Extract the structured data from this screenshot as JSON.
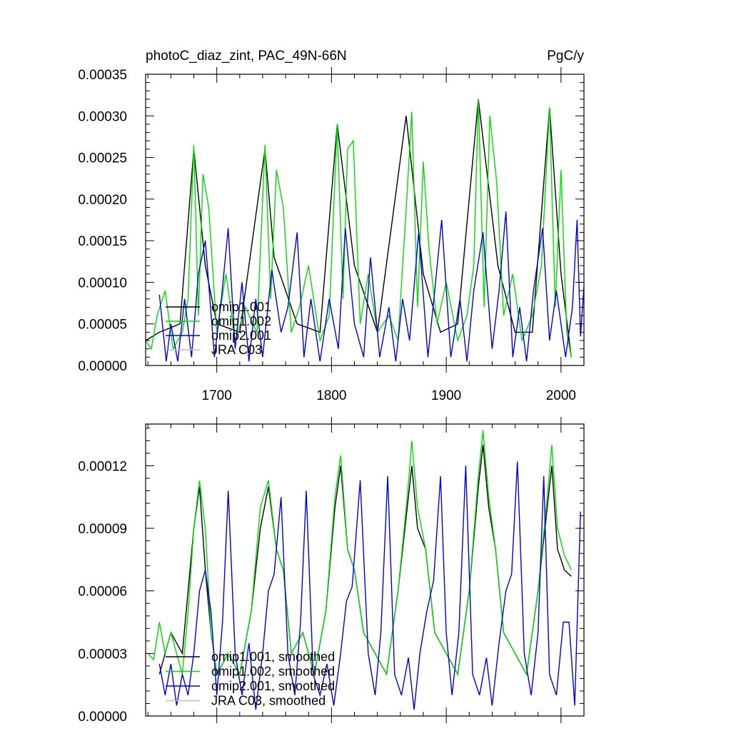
{
  "chart_data": [
    {
      "type": "line",
      "title": "photoC_diaz_zint, PAC_49N-66N",
      "units": "PgC/y",
      "xlim": [
        1638,
        2020
      ],
      "ylim": [
        0,
        0.00035
      ],
      "xticks": [
        1700,
        1800,
        1900,
        2000
      ],
      "xtick_labels": [
        "1700",
        "1800",
        "1900",
        "2000"
      ],
      "yticks": [
        0,
        5e-05,
        0.0001,
        0.00015,
        0.0002,
        0.00025,
        0.0003,
        0.00035
      ],
      "ytick_labels": [
        "0.00000",
        "0.00005",
        "0.00010",
        "0.00015",
        "0.00020",
        "0.00025",
        "0.00030",
        "0.00035"
      ],
      "legend_position": "lower-left",
      "series": [
        {
          "name": "omip1.001",
          "color": "#000000",
          "x": [
            1638,
            1650,
            1668,
            1680,
            1690,
            1700,
            1720,
            1742,
            1750,
            1770,
            1790,
            1805,
            1820,
            1840,
            1865,
            1880,
            1895,
            1910,
            1928,
            1945,
            1960,
            1975,
            1990,
            2000,
            2009
          ],
          "y": [
            3e-05,
            4e-05,
            5e-05,
            0.00026,
            0.00012,
            5e-05,
            4e-05,
            0.00026,
            0.00013,
            5e-05,
            4e-05,
            0.00029,
            0.00012,
            4e-05,
            0.0003,
            0.00011,
            4e-05,
            5e-05,
            0.00032,
            0.00012,
            4e-05,
            4e-05,
            0.00031,
            0.00011,
            1e-05
          ]
        },
        {
          "name": "omip1.002",
          "color": "#00dd00",
          "x": [
            1638,
            1643,
            1648,
            1655,
            1662,
            1670,
            1675,
            1680,
            1684,
            1688,
            1693,
            1700,
            1708,
            1716,
            1725,
            1735,
            1742,
            1747,
            1752,
            1758,
            1765,
            1772,
            1780,
            1790,
            1798,
            1805,
            1810,
            1814,
            1819,
            1825,
            1832,
            1840,
            1850,
            1858,
            1866,
            1870,
            1875,
            1880,
            1885,
            1892,
            1900,
            1910,
            1918,
            1924,
            1928,
            1933,
            1938,
            1944,
            1950,
            1958,
            1966,
            1975,
            1983,
            1990,
            1995,
            2000,
            2005,
            2009
          ],
          "y": [
            3e-05,
            2e-05,
            6e-05,
            9e-05,
            2e-05,
            4e-05,
            8e-05,
            0.000265,
            6e-05,
            0.00023,
            0.00019,
            4e-05,
            0.00011,
            3e-05,
            7e-05,
            4e-05,
            0.000265,
            8e-05,
            0.000235,
            0.00019,
            4e-05,
            7e-05,
            0.00012,
            3e-05,
            6e-05,
            0.00029,
            8e-05,
            0.00026,
            0.00027,
            5e-05,
            0.00011,
            4e-05,
            6e-05,
            3e-05,
            0.00021,
            0.000305,
            7e-05,
            0.000245,
            0.00014,
            5e-05,
            0.0001,
            3e-05,
            6e-05,
            0.00012,
            0.00032,
            7e-05,
            0.0003,
            0.00022,
            6e-05,
            0.00011,
            3e-05,
            6e-05,
            0.00012,
            0.00031,
            7e-05,
            0.000235,
            4e-05,
            1e-05
          ]
        },
        {
          "name": "omip2.001",
          "color": "#0000dd",
          "x": [
            1650,
            1656,
            1660,
            1666,
            1672,
            1678,
            1684,
            1690,
            1698,
            1704,
            1710,
            1716,
            1722,
            1728,
            1734,
            1740,
            1748,
            1756,
            1762,
            1770,
            1776,
            1782,
            1790,
            1798,
            1806,
            1812,
            1820,
            1828,
            1834,
            1842,
            1850,
            1856,
            1862,
            1868,
            1876,
            1884,
            1890,
            1896,
            1904,
            1912,
            1918,
            1924,
            1932,
            1940,
            1946,
            1952,
            1958,
            1964,
            1970,
            1976,
            1984,
            1990,
            1996,
            2004,
            2010,
            2014,
            2017,
            2020
          ],
          "y": [
            8.5e-05,
            5e-06,
            5e-05,
            5e-06,
            8e-05,
            1e-05,
            0.00011,
            0.00015,
            1e-05,
            8e-05,
            0.000165,
            2e-05,
            0.0001,
            5e-06,
            8e-05,
            1e-05,
            0.000115,
            4e-05,
            7e-05,
            0.00016,
            1e-05,
            8e-05,
            5e-06,
            8e-05,
            2e-05,
            0.000165,
            5e-05,
            1e-05,
            0.00013,
            1e-05,
            7e-05,
            5e-06,
            8e-05,
            3e-05,
            0.00016,
            1e-05,
            9e-05,
            0.000175,
            1e-05,
            8e-05,
            5e-06,
            9e-05,
            0.00016,
            2e-05,
            9e-05,
            0.000185,
            1e-05,
            7e-05,
            5e-06,
            9e-05,
            0.000165,
            3e-05,
            9e-05,
            1e-05,
            7e-05,
            0.000175,
            3.5e-05,
            9.5e-05
          ]
        },
        {
          "name": "JRA C03",
          "color": "#bbbbbb",
          "x": [],
          "y": []
        }
      ]
    },
    {
      "type": "line",
      "title": "",
      "xlim": [
        1638,
        2020
      ],
      "ylim": [
        0,
        0.00014
      ],
      "xticks": [
        1700,
        1800,
        1900,
        2000
      ],
      "yticks": [
        0,
        3e-05,
        6e-05,
        9e-05,
        0.00012
      ],
      "ytick_labels": [
        "0.00000",
        "0.00003",
        "0.00006",
        "0.00009",
        "0.00012"
      ],
      "legend_position": "lower-left",
      "series": [
        {
          "name": "omip1.001, smoothed",
          "color": "#000000",
          "x": [
            1650,
            1660,
            1670,
            1680,
            1685,
            1690,
            1695,
            1700,
            1710,
            1720,
            1730,
            1738,
            1745,
            1752,
            1758,
            1765,
            1775,
            1785,
            1795,
            1803,
            1808,
            1814,
            1820,
            1828,
            1838,
            1848,
            1858,
            1866,
            1870,
            1875,
            1882,
            1890,
            1900,
            1910,
            1920,
            1928,
            1932,
            1937,
            1943,
            1950,
            1960,
            1970,
            1980,
            1988,
            1992,
            1997,
            2003,
            2009
          ],
          "y": [
            2e-05,
            4e-05,
            3e-05,
            9e-05,
            0.00011,
            7e-05,
            4e-05,
            2e-05,
            3e-05,
            2e-05,
            5e-05,
            9e-05,
            0.00011,
            8e-05,
            7e-05,
            3e-05,
            4e-05,
            2e-05,
            5e-05,
            0.0001,
            0.00012,
            8e-05,
            7e-05,
            4e-05,
            3e-05,
            2e-05,
            6e-05,
            0.0001,
            0.00012,
            9e-05,
            8e-05,
            4e-05,
            3e-05,
            2e-05,
            6e-05,
            0.00011,
            0.00013,
            0.0001,
            8e-05,
            4e-05,
            3e-05,
            2e-05,
            6e-05,
            0.0001,
            0.00012,
            8e-05,
            7e-05,
            6.7e-05
          ]
        },
        {
          "name": "omip1.002, smoothed",
          "color": "#00dd00",
          "x": [
            1640,
            1645,
            1650,
            1655,
            1660,
            1665,
            1670,
            1675,
            1680,
            1685,
            1690,
            1695,
            1700,
            1710,
            1720,
            1730,
            1738,
            1745,
            1752,
            1758,
            1765,
            1775,
            1785,
            1795,
            1803,
            1808,
            1814,
            1820,
            1828,
            1838,
            1848,
            1858,
            1866,
            1870,
            1875,
            1882,
            1890,
            1900,
            1910,
            1920,
            1928,
            1932,
            1937,
            1943,
            1950,
            1960,
            1970,
            1980,
            1988,
            1992,
            1997,
            2003,
            2009
          ],
          "y": [
            3e-05,
            2.7e-05,
            4.5e-05,
            3e-05,
            4e-05,
            3e-05,
            2e-05,
            5e-05,
            9e-05,
            0.000113,
            9e-05,
            4e-05,
            2e-05,
            3e-05,
            2e-05,
            5e-05,
            0.0001,
            0.000113,
            8e-05,
            7e-05,
            3e-05,
            4e-05,
            2e-05,
            5e-05,
            0.000105,
            0.000125,
            8e-05,
            7e-05,
            4e-05,
            3e-05,
            2e-05,
            6e-05,
            0.000105,
            0.000132,
            0.0001,
            8e-05,
            4e-05,
            3e-05,
            2e-05,
            6e-05,
            0.000115,
            0.000137,
            0.000105,
            8e-05,
            4e-05,
            3e-05,
            2e-05,
            6e-05,
            0.000105,
            0.00013,
            9e-05,
            7.7e-05,
            7e-05
          ]
        },
        {
          "name": "omip2.001, smoothed",
          "color": "#0000dd",
          "x": [
            1650,
            1655,
            1660,
            1665,
            1670,
            1675,
            1680,
            1685,
            1690,
            1695,
            1700,
            1705,
            1710,
            1716,
            1722,
            1728,
            1734,
            1740,
            1745,
            1750,
            1756,
            1762,
            1768,
            1773,
            1778,
            1784,
            1790,
            1796,
            1802,
            1808,
            1813,
            1818,
            1825,
            1832,
            1838,
            1843,
            1849,
            1855,
            1861,
            1867,
            1872,
            1877,
            1883,
            1889,
            1895,
            1900,
            1905,
            1911,
            1917,
            1923,
            1929,
            1935,
            1940,
            1946,
            1952,
            1957,
            1962,
            1968,
            1974,
            1980,
            1985,
            1990,
            1996,
            2002,
            2007,
            2012,
            2017
          ],
          "y": [
            2.5e-05,
            1e-05,
            2.5e-05,
            5e-06,
            2e-05,
            1e-05,
            3e-05,
            6e-05,
            7e-05,
            5e-05,
            1e-05,
            4.5e-05,
            0.000108,
            3e-05,
            1e-05,
            3.5e-05,
            3e-06,
            3e-05,
            6e-05,
            6.8e-05,
            0.000105,
            3e-05,
            1e-05,
            4.5e-05,
            0.000108,
            2e-05,
            1e-05,
            2.5e-05,
            5e-06,
            3e-05,
            5.5e-05,
            6.2e-05,
            0.000113,
            3e-05,
            1e-05,
            4e-05,
            0.000115,
            2e-05,
            1e-05,
            2.8e-05,
            3e-06,
            3e-05,
            5e-05,
            6.5e-05,
            0.000115,
            4e-05,
            1e-05,
            4e-05,
            0.00012,
            2e-05,
            1e-05,
            2.8e-05,
            5e-06,
            3.5e-05,
            6e-05,
            6.8e-05,
            0.000122,
            3e-05,
            1e-05,
            4e-05,
            0.000115,
            2e-05,
            1e-05,
            4.5e-05,
            4.5e-05,
            5e-06,
            9.8e-05
          ]
        },
        {
          "name": "JRA C03, smoothed",
          "color": "#bbbbbb",
          "x": [],
          "y": []
        }
      ]
    }
  ]
}
